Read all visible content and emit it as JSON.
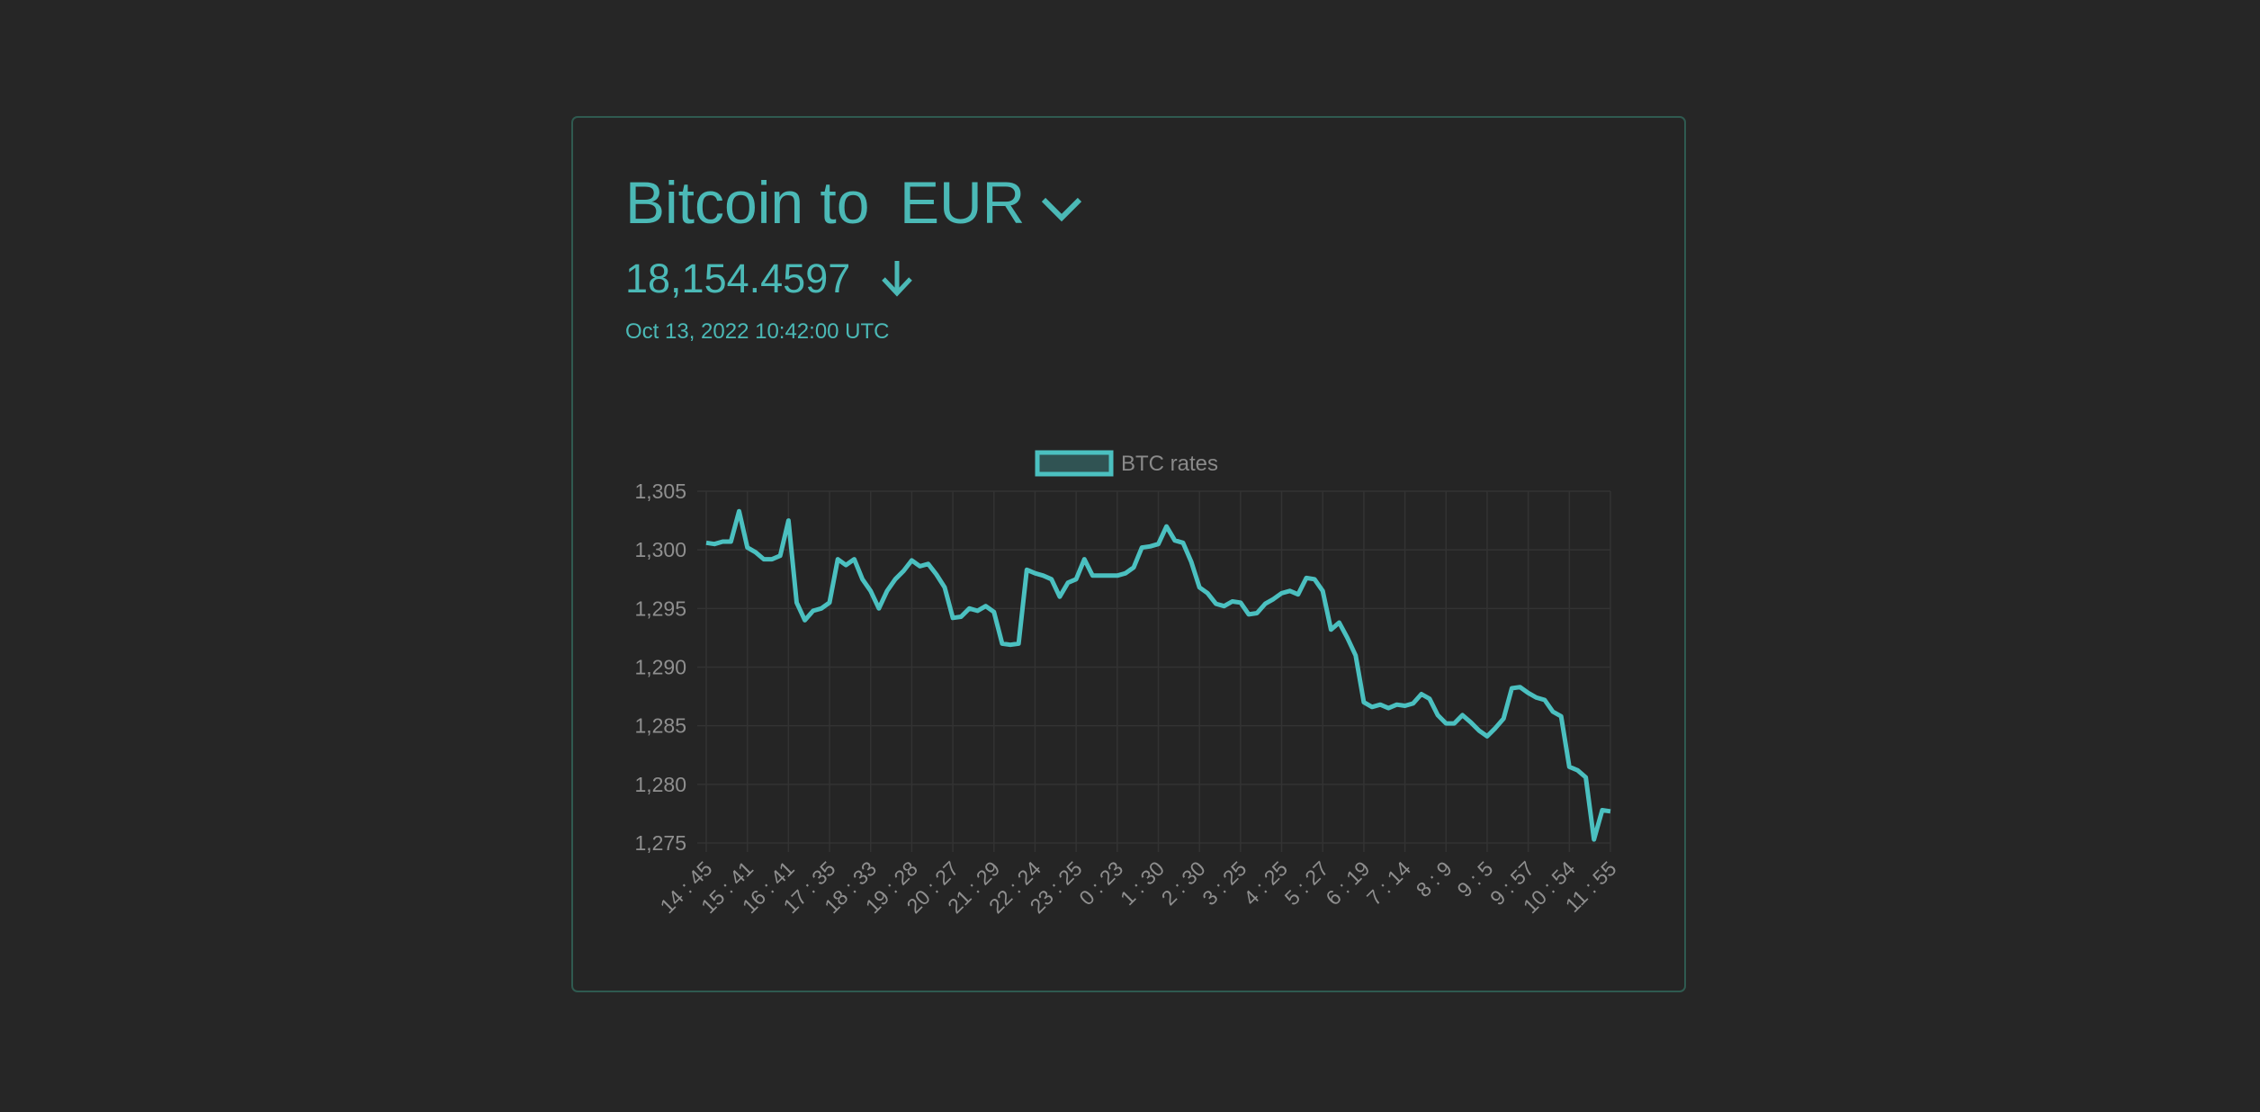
{
  "card": {
    "title": "Bitcoin to",
    "currency": "EUR",
    "price": "18,154.4597",
    "timestamp": "Oct 13, 2022 10:42:00 UTC"
  },
  "chart_data": {
    "type": "line",
    "categories": [
      "14 : 45",
      null,
      null,
      null,
      null,
      "15 : 41",
      null,
      null,
      null,
      null,
      "16 : 41",
      null,
      null,
      null,
      null,
      "17 : 35",
      null,
      null,
      null,
      null,
      "18 : 33",
      null,
      null,
      null,
      null,
      "19 : 28",
      null,
      null,
      null,
      null,
      "20 : 27",
      null,
      null,
      null,
      null,
      "21 : 29",
      null,
      null,
      null,
      null,
      "22 : 24",
      null,
      null,
      null,
      null,
      "23 : 25",
      null,
      null,
      null,
      null,
      "0 : 23",
      null,
      null,
      null,
      null,
      "1 : 30",
      null,
      null,
      null,
      null,
      "2 : 30",
      null,
      null,
      null,
      null,
      "3 : 25",
      null,
      null,
      null,
      null,
      "4 : 25",
      null,
      null,
      null,
      null,
      "5 : 27",
      null,
      null,
      null,
      null,
      "6 : 19",
      null,
      null,
      null,
      null,
      "7 : 14",
      null,
      null,
      null,
      null,
      "8 : 9",
      null,
      null,
      null,
      null,
      "9 : 5",
      null,
      null,
      null,
      null,
      "9 : 57",
      null,
      null,
      null,
      null,
      "10 : 54",
      null,
      null,
      null,
      null,
      "11 : 55"
    ],
    "series": [
      {
        "name": "BTC rates",
        "color": "#4bc0c0",
        "values": [
          1300.6,
          1300.5,
          1300.7,
          1300.7,
          1303.3,
          1300.2,
          1299.8,
          1299.2,
          1299.2,
          1299.5,
          1302.5,
          1295.5,
          1294,
          1294.8,
          1295,
          1295.5,
          1299.2,
          1298.7,
          1299.2,
          1297.5,
          1296.5,
          1295,
          1296.5,
          1297.5,
          1298.2,
          1299.1,
          1298.6,
          1298.8,
          1297.9,
          1296.8,
          1294.2,
          1294.3,
          1295,
          1294.8,
          1295.2,
          1294.7,
          1292,
          1291.9,
          1292,
          1298.3,
          1298,
          1297.8,
          1297.5,
          1296,
          1297.2,
          1297.5,
          1299.2,
          1297.8,
          1297.8,
          1297.8,
          1297.8,
          1298,
          1298.5,
          1300.2,
          1300.3,
          1300.5,
          1302,
          1300.8,
          1300.6,
          1299,
          1296.8,
          1296.3,
          1295.4,
          1295.2,
          1295.6,
          1295.5,
          1294.5,
          1294.6,
          1295.4,
          1295.8,
          1296.3,
          1296.5,
          1296.2,
          1297.6,
          1297.5,
          1296.5,
          1293.2,
          1293.8,
          1292.5,
          1291,
          1287,
          1286.6,
          1286.8,
          1286.5,
          1286.8,
          1286.7,
          1286.9,
          1287.7,
          1287.3,
          1285.9,
          1285.2,
          1285.2,
          1285.9,
          1285.3,
          1284.6,
          1284.1,
          1284.8,
          1285.6,
          1288.2,
          1288.3,
          1287.8,
          1287.4,
          1287.2,
          1286.2,
          1285.8,
          1281.5,
          1281.2,
          1280.6,
          1275.3,
          1277.8,
          1277.7
        ]
      }
    ],
    "ylim": [
      1275,
      1305
    ],
    "yticks": [
      {
        "value": 1275,
        "label": "1,275"
      },
      {
        "value": 1280,
        "label": "1,280"
      },
      {
        "value": 1285,
        "label": "1,285"
      },
      {
        "value": 1290,
        "label": "1,290"
      },
      {
        "value": 1295,
        "label": "1,295"
      },
      {
        "value": 1300,
        "label": "1,300"
      },
      {
        "value": 1305,
        "label": "1,305"
      }
    ],
    "grid": true
  }
}
